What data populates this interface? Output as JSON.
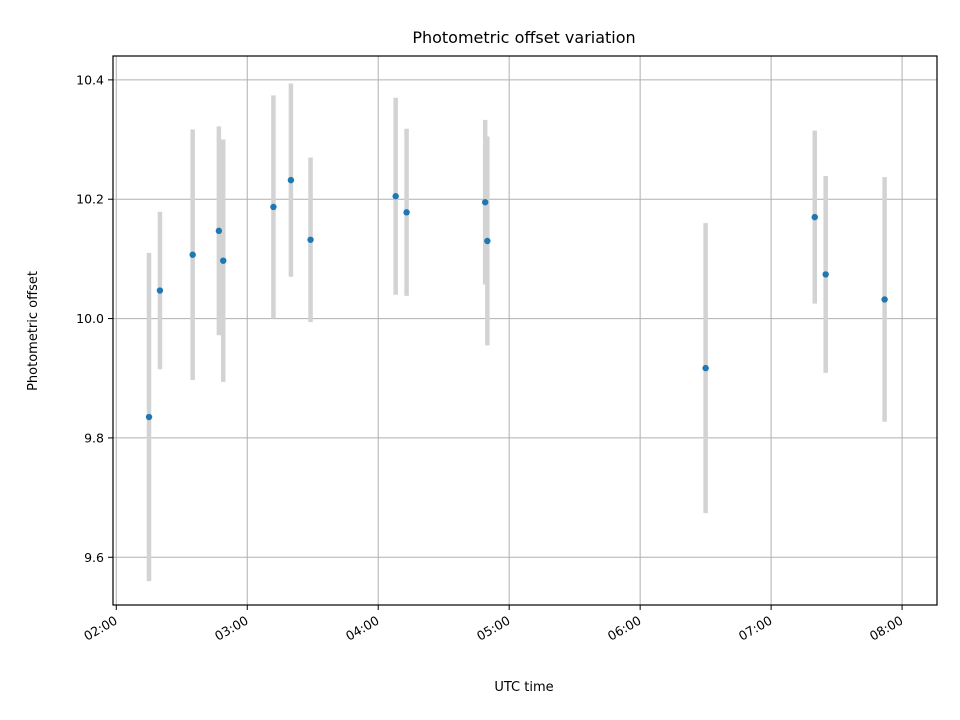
{
  "chart_data": {
    "type": "scatter",
    "title": "Photometric offset variation",
    "xlabel": "UTC time",
    "ylabel": "Photometric offset",
    "xlim": [
      "02:00",
      "08:15"
    ],
    "ylim": [
      9.52,
      10.44
    ],
    "xticks": [
      "02:00",
      "03:00",
      "04:00",
      "05:00",
      "06:00",
      "07:00",
      "08:00"
    ],
    "yticks": [
      "9.6",
      "9.8",
      "10.0",
      "10.2",
      "10.4"
    ],
    "grid": true,
    "legend": "none",
    "colors": {
      "point": "#1f77b4",
      "errorbar": "#d3d3d3",
      "grid": "#b0b0b0",
      "frame": "#000000"
    },
    "series": [
      {
        "points": [
          {
            "x": "02:15",
            "y": 9.835,
            "err": 0.275
          },
          {
            "x": "02:20",
            "y": 10.047,
            "err": 0.132
          },
          {
            "x": "02:35",
            "y": 10.107,
            "err": 0.21
          },
          {
            "x": "02:47",
            "y": 10.147,
            "err": 0.175
          },
          {
            "x": "02:49",
            "y": 10.097,
            "err": 0.203
          },
          {
            "x": "03:12",
            "y": 10.187,
            "err": 0.187
          },
          {
            "x": "03:20",
            "y": 10.232,
            "err": 0.162
          },
          {
            "x": "03:29",
            "y": 10.132,
            "err": 0.138
          },
          {
            "x": "04:08",
            "y": 10.205,
            "err": 0.165
          },
          {
            "x": "04:13",
            "y": 10.178,
            "err": 0.14
          },
          {
            "x": "04:49",
            "y": 10.195,
            "err": 0.138
          },
          {
            "x": "04:50",
            "y": 10.13,
            "err": 0.175
          },
          {
            "x": "06:30",
            "y": 9.917,
            "err": 0.243
          },
          {
            "x": "07:20",
            "y": 10.17,
            "err": 0.145
          },
          {
            "x": "07:25",
            "y": 10.074,
            "err": 0.165
          },
          {
            "x": "07:52",
            "y": 10.032,
            "err": 0.205
          }
        ]
      }
    ]
  }
}
